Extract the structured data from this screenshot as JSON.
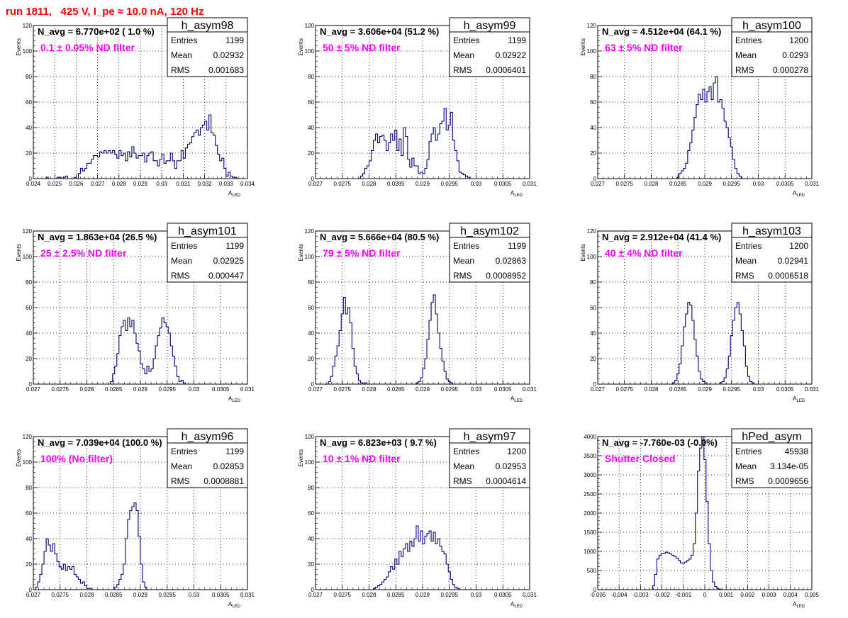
{
  "page": {
    "title": "run 1811,   425 V, I_pe ≈ 10.0 nA, 120 Hz"
  },
  "colors": {
    "title": "#ff0000",
    "filter_label": "#ff00ff",
    "histogram_line": "#000080",
    "grid": "#000000",
    "background": "#ffffff"
  },
  "stat_labels": {
    "entries": "Entries",
    "mean": "Mean",
    "rms": "RMS"
  },
  "chart_data": [
    {
      "type": "histogram",
      "name": "h_asym98",
      "navg_text": "N_avg = 6.770e+02 ( 1.0 %)",
      "filter_text": "0.1 ± 0.05% ND filter",
      "entries": "1199",
      "mean": "0.02932",
      "rms": "0.001683",
      "xlabel": "A",
      "xlabel_sub": "LED",
      "ylabel": "Events",
      "xlim": [
        0.024,
        0.034
      ],
      "ylim": [
        0,
        120
      ],
      "xticks": [
        0.024,
        0.025,
        0.026,
        0.027,
        0.028,
        0.029,
        0.03,
        0.031,
        0.032,
        0.033,
        0.034
      ],
      "xtick_labels": [
        "0.024",
        "0.025",
        "0.026",
        "0.027",
        "0.028",
        "0.029",
        "0.03",
        "0.031",
        "0.032",
        "0.033",
        "0.034"
      ],
      "yticks": [
        0,
        20,
        40,
        60,
        80,
        100,
        120
      ],
      "ytick_labels": [
        "0",
        "20",
        "40",
        "60",
        "80",
        "100",
        "120"
      ],
      "grid": true,
      "legend": "top-right",
      "bin_start": 0.0246,
      "bin_width": 0.0001,
      "values": [
        1,
        0,
        0,
        0,
        0,
        1,
        1,
        0,
        1,
        2,
        0,
        0,
        0,
        1,
        0,
        4,
        8,
        6,
        8,
        12,
        12,
        15,
        18,
        18,
        17,
        21,
        20,
        22,
        20,
        22,
        20,
        22,
        19,
        16,
        22,
        18,
        20,
        14,
        21,
        17,
        25,
        20,
        16,
        18,
        18,
        20,
        13,
        18,
        20,
        21,
        14,
        14,
        10,
        15,
        19,
        12,
        14,
        14,
        20,
        14,
        8,
        14,
        14,
        22,
        16,
        24,
        27,
        28,
        33,
        36,
        38,
        34,
        40,
        42,
        45,
        38,
        50,
        36,
        34,
        26,
        19,
        14,
        16,
        8,
        2,
        5,
        2,
        1,
        1
      ]
    },
    {
      "type": "histogram",
      "name": "h_asym99",
      "navg_text": "N_avg = 3.606e+04 (51.2 %)",
      "filter_text": "50 ± 5% ND filter",
      "entries": "1199",
      "mean": "0.02922",
      "rms": "0.0006401",
      "xlabel": "A",
      "xlabel_sub": "LED",
      "ylabel": "Events",
      "xlim": [
        0.027,
        0.031
      ],
      "ylim": [
        0,
        120
      ],
      "xticks": [
        0.027,
        0.0275,
        0.028,
        0.0285,
        0.029,
        0.0295,
        0.03,
        0.0305,
        0.031
      ],
      "xtick_labels": [
        "0.027",
        "0.0275",
        "0.028",
        "0.0285",
        "0.029",
        "0.0295",
        "0.03",
        "0.0305",
        "0.031"
      ],
      "yticks": [
        0,
        20,
        40,
        60,
        80,
        100,
        120
      ],
      "ytick_labels": [
        "0",
        "20",
        "40",
        "60",
        "80",
        "100",
        "120"
      ],
      "grid": true,
      "legend": "top-right",
      "bin_start": 0.02784,
      "bin_width": 4e-05,
      "values": [
        2,
        4,
        8,
        10,
        14,
        22,
        30,
        35,
        28,
        33,
        34,
        30,
        22,
        28,
        35,
        30,
        38,
        22,
        31,
        18,
        40,
        33,
        15,
        9,
        16,
        10,
        10,
        4,
        5,
        4,
        8,
        15,
        29,
        35,
        40,
        30,
        35,
        43,
        45,
        55,
        38,
        42,
        52,
        30,
        22,
        14,
        5,
        4,
        3,
        2,
        1
      ]
    },
    {
      "type": "histogram",
      "name": "h_asym100",
      "navg_text": "N_avg = 4.512e+04 (64.1 %)",
      "filter_text": "63 ± 5% ND filter",
      "entries": "1200",
      "mean": "0.0293",
      "rms": "0.000278",
      "xlabel": "A",
      "xlabel_sub": "LED",
      "ylabel": "Events",
      "xlim": [
        0.027,
        0.031
      ],
      "ylim": [
        0,
        120
      ],
      "xticks": [
        0.027,
        0.0275,
        0.028,
        0.0285,
        0.029,
        0.0295,
        0.03,
        0.0305,
        0.031
      ],
      "xtick_labels": [
        "0.027",
        "0.0275",
        "0.028",
        "0.0285",
        "0.029",
        "0.0295",
        "0.03",
        "0.0305",
        "0.031"
      ],
      "yticks": [
        0,
        20,
        40,
        60,
        80,
        100,
        120
      ],
      "ytick_labels": [
        "0",
        "20",
        "40",
        "60",
        "80",
        "100",
        "120"
      ],
      "grid": true,
      "legend": "top-right",
      "bin_start": 0.02848,
      "bin_width": 4e-05,
      "values": [
        1,
        4,
        6,
        8,
        12,
        22,
        28,
        38,
        48,
        58,
        66,
        62,
        70,
        60,
        68,
        72,
        62,
        75,
        80,
        60,
        62,
        55,
        45,
        40,
        32,
        25,
        15,
        8,
        4,
        2
      ]
    },
    {
      "type": "histogram",
      "name": "h_asym101",
      "navg_text": "N_avg = 1.863e+04 (26.5 %)",
      "filter_text": "25 ± 2.5% ND filter",
      "entries": "1199",
      "mean": "0.02925",
      "rms": "0.000447",
      "xlabel": "A",
      "xlabel_sub": "LED",
      "ylabel": "Events",
      "xlim": [
        0.027,
        0.031
      ],
      "ylim": [
        0,
        120
      ],
      "xticks": [
        0.027,
        0.0275,
        0.028,
        0.0285,
        0.029,
        0.0295,
        0.03,
        0.0305,
        0.031
      ],
      "xtick_labels": [
        "0.027",
        "0.0275",
        "0.028",
        "0.0285",
        "0.029",
        "0.0295",
        "0.03",
        "0.0305",
        "0.031"
      ],
      "yticks": [
        0,
        20,
        40,
        60,
        80,
        100,
        120
      ],
      "ytick_labels": [
        "0",
        "20",
        "40",
        "60",
        "80",
        "100",
        "120"
      ],
      "grid": true,
      "legend": "top-right",
      "bin_start": 0.02844,
      "bin_width": 4e-05,
      "values": [
        2,
        8,
        14,
        24,
        38,
        45,
        50,
        42,
        52,
        45,
        50,
        40,
        32,
        26,
        16,
        12,
        8,
        14,
        10,
        12,
        20,
        30,
        38,
        44,
        52,
        48,
        45,
        40,
        30,
        22,
        14,
        6,
        2,
        3,
        1
      ]
    },
    {
      "type": "histogram",
      "name": "h_asym102",
      "navg_text": "N_avg = 5.666e+04 (80.5 %)",
      "filter_text": "79 ± 5% ND filter",
      "entries": "1199",
      "mean": "0.02863",
      "rms": "0.0008952",
      "xlabel": "A",
      "xlabel_sub": "LED",
      "ylabel": "Events",
      "xlim": [
        0.027,
        0.031
      ],
      "ylim": [
        0,
        120
      ],
      "xticks": [
        0.027,
        0.0275,
        0.028,
        0.0285,
        0.029,
        0.0295,
        0.03,
        0.0305,
        0.031
      ],
      "xtick_labels": [
        "0.027",
        "0.0275",
        "0.028",
        "0.0285",
        "0.029",
        "0.0295",
        "0.03",
        "0.0305",
        "0.031"
      ],
      "yticks": [
        0,
        20,
        40,
        60,
        80,
        100,
        120
      ],
      "ytick_labels": [
        "0",
        "20",
        "40",
        "60",
        "80",
        "100",
        "120"
      ],
      "grid": true,
      "legend": "top-right",
      "bin_start": 0.02724,
      "bin_width": 4e-05,
      "values": [
        2,
        6,
        14,
        22,
        30,
        42,
        55,
        68,
        55,
        60,
        48,
        28,
        14,
        8,
        3,
        1,
        0,
        1,
        0,
        0,
        0,
        0,
        0,
        0,
        0,
        0,
        0,
        0,
        0,
        0,
        0,
        0,
        0,
        0,
        0,
        0,
        0,
        0,
        0,
        0,
        0,
        1,
        2,
        5,
        12,
        20,
        35,
        50,
        64,
        70,
        55,
        40,
        28,
        18,
        10,
        4,
        2,
        1
      ]
    },
    {
      "type": "histogram",
      "name": "h_asym103",
      "navg_text": "N_avg = 2.912e+04 (41.4 %)",
      "filter_text": "40 ± 4% ND filter",
      "entries": "1200",
      "mean": "0.02941",
      "rms": "0.0006518",
      "xlabel": "A",
      "xlabel_sub": "LED",
      "ylabel": "Events",
      "xlim": [
        0.027,
        0.031
      ],
      "ylim": [
        0,
        120
      ],
      "xticks": [
        0.027,
        0.0275,
        0.028,
        0.0285,
        0.029,
        0.0295,
        0.03,
        0.0305,
        0.031
      ],
      "xtick_labels": [
        "0.027",
        "0.0275",
        "0.028",
        "0.0285",
        "0.029",
        "0.0295",
        "0.03",
        "0.0305",
        "0.031"
      ],
      "yticks": [
        0,
        20,
        40,
        60,
        80,
        100,
        120
      ],
      "ytick_labels": [
        "0",
        "20",
        "40",
        "60",
        "80",
        "100",
        "120"
      ],
      "grid": true,
      "legend": "top-right",
      "bin_start": 0.0284,
      "bin_width": 4e-05,
      "values": [
        1,
        3,
        8,
        16,
        30,
        45,
        55,
        64,
        62,
        50,
        35,
        22,
        10,
        4,
        2,
        1,
        0,
        0,
        0,
        0,
        0,
        0,
        1,
        2,
        5,
        12,
        22,
        38,
        50,
        60,
        64,
        55,
        42,
        30,
        14,
        6,
        2,
        1
      ]
    },
    {
      "type": "histogram",
      "name": "h_asym96",
      "navg_text": "N_avg = 7.039e+04 (100.0 %)",
      "filter_text": "100% (No filter)",
      "entries": "1199",
      "mean": "0.02853",
      "rms": "0.0008881",
      "xlabel": "A",
      "xlabel_sub": "LED",
      "ylabel": "Events",
      "xlim": [
        0.027,
        0.031
      ],
      "ylim": [
        0,
        120
      ],
      "xticks": [
        0.027,
        0.0275,
        0.028,
        0.0285,
        0.029,
        0.0295,
        0.03,
        0.0305,
        0.031
      ],
      "xtick_labels": [
        "0.027",
        "0.0275",
        "0.028",
        "0.0285",
        "0.029",
        "0.0295",
        "0.03",
        "0.0305",
        "0.031"
      ],
      "yticks": [
        0,
        20,
        40,
        60,
        80,
        100,
        120
      ],
      "ytick_labels": [
        "0",
        "20",
        "40",
        "60",
        "80",
        "100",
        "120"
      ],
      "grid": true,
      "legend": "top-right",
      "bin_start": 0.02704,
      "bin_width": 4e-05,
      "values": [
        2,
        6,
        12,
        20,
        30,
        40,
        35,
        30,
        36,
        28,
        22,
        18,
        16,
        20,
        15,
        18,
        16,
        18,
        12,
        10,
        8,
        5,
        6,
        3,
        1,
        1,
        0,
        0,
        0,
        0,
        0,
        0,
        0,
        0,
        0,
        0,
        0,
        2,
        4,
        8,
        12,
        20,
        40,
        55,
        62,
        65,
        68,
        62,
        42,
        20,
        6,
        2
      ]
    },
    {
      "type": "histogram",
      "name": "h_asym97",
      "navg_text": "N_avg = 6.823e+03 ( 9.7 %)",
      "filter_text": "10 ± 1% ND filter",
      "entries": "1200",
      "mean": "0.02953",
      "rms": "0.0004614",
      "xlabel": "A",
      "xlabel_sub": "LED",
      "ylabel": "Events",
      "xlim": [
        0.027,
        0.031
      ],
      "ylim": [
        0,
        120
      ],
      "xticks": [
        0.027,
        0.0275,
        0.028,
        0.0285,
        0.029,
        0.0295,
        0.03,
        0.0305,
        0.031
      ],
      "xtick_labels": [
        "0.027",
        "0.0275",
        "0.028",
        "0.0285",
        "0.029",
        "0.0295",
        "0.03",
        "0.0305",
        "0.031"
      ],
      "yticks": [
        0,
        20,
        40,
        60,
        80,
        100,
        120
      ],
      "ytick_labels": [
        "0",
        "20",
        "40",
        "60",
        "80",
        "100",
        "120"
      ],
      "grid": true,
      "legend": "top-right",
      "bin_start": 0.02808,
      "bin_width": 4e-05,
      "values": [
        1,
        2,
        3,
        4,
        6,
        8,
        10,
        14,
        18,
        16,
        24,
        20,
        30,
        26,
        32,
        36,
        30,
        38,
        34,
        40,
        50,
        38,
        46,
        36,
        42,
        44,
        46,
        38,
        45,
        36,
        40,
        34,
        30,
        28,
        20,
        14,
        8,
        4,
        2,
        1
      ]
    },
    {
      "type": "histogram",
      "name": "hPed_asym",
      "navg_text": "N_avg = -7.760e-03 (-0.0%)",
      "filter_text": "Shutter Closed",
      "entries": "45938",
      "mean": "3.134e-05",
      "rms": "0.0009656",
      "xlabel": "A",
      "xlabel_sub": "LED",
      "ylabel": "",
      "xlim": [
        -0.005,
        0.005
      ],
      "ylim": [
        0,
        4000
      ],
      "xticks": [
        -0.005,
        -0.004,
        -0.003,
        -0.002,
        -0.001,
        0,
        0.001,
        0.002,
        0.003,
        0.004,
        0.005
      ],
      "xtick_labels": [
        "-0.005",
        "-0.004",
        "-0.003",
        "-0.002",
        "-0.001",
        "0",
        "0.001",
        "0.002",
        "0.003",
        "0.004",
        "0.005"
      ],
      "yticks": [
        0,
        500,
        1000,
        1500,
        2000,
        2500,
        3000,
        3500,
        4000
      ],
      "ytick_labels": [
        "0",
        "500",
        "1000",
        "1500",
        "2000",
        "2500",
        "3000",
        "3500",
        "4000"
      ],
      "grid": true,
      "legend": "top-right",
      "bin_start": -0.00244,
      "bin_width": 0.0001,
      "values": [
        100,
        400,
        800,
        900,
        950,
        950,
        980,
        960,
        940,
        900,
        870,
        820,
        760,
        700,
        690,
        720,
        760,
        800,
        900,
        1200,
        2000,
        3100,
        3700,
        4000,
        3400,
        2300,
        1200,
        500,
        200,
        80,
        30,
        10
      ]
    }
  ]
}
